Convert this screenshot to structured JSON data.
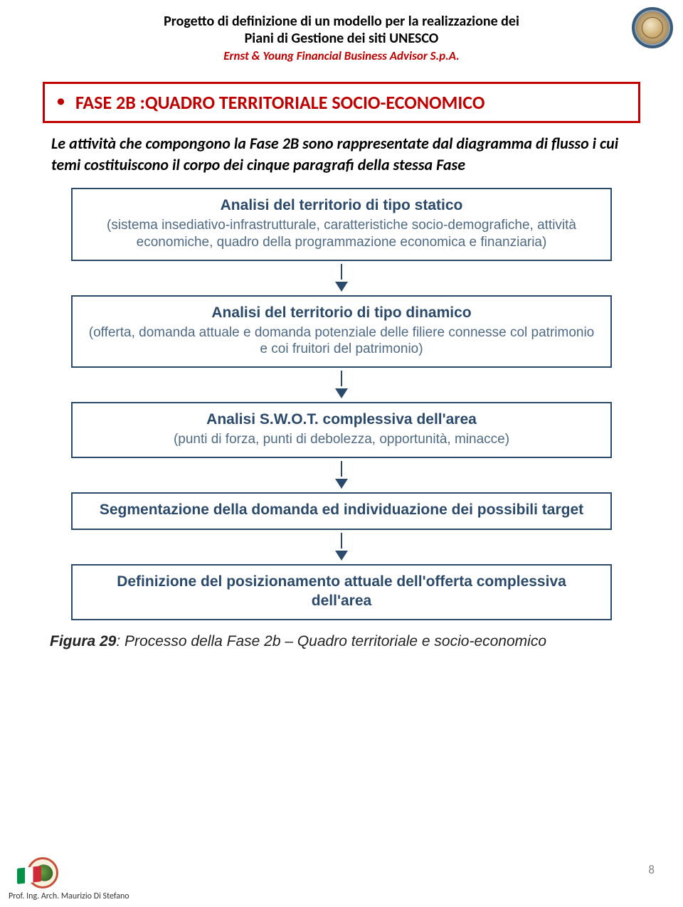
{
  "header": {
    "title_line1": "Progetto di definizione di un modello per la realizzazione dei",
    "title_line2": "Piani di Gestione dei siti UNESCO",
    "subtitle": "Ernst & Young Financial Business Advisor S.p.A.",
    "subtitle_color": "#c00000"
  },
  "phase": {
    "label": "FASE 2B :QUADRO TERRITORIALE SOCIO-ECONOMICO",
    "border_color": "#c00000",
    "text_color": "#c00000"
  },
  "intro": "Le attività che compongono la Fase 2B sono rappresentate dal diagramma di flusso i cui temi costituiscono il corpo dei cinque paragrafi  della stessa Fase",
  "flowchart": {
    "type": "flowchart",
    "node_border_color": "#2b4a6b",
    "title_color": "#2b4a6b",
    "body_color": "#4f6a84",
    "arrow_color": "#2b4a6b",
    "background_color": "#ffffff",
    "nodes": [
      {
        "title": "Analisi del territorio di tipo statico",
        "body": "(sistema insediativo-infrastrutturale, caratteristiche socio-demografiche, attività economiche, quadro della programmazione economica e finanziaria)"
      },
      {
        "title": "Analisi del territorio di tipo dinamico",
        "body": "(offerta, domanda attuale e domanda potenziale delle filiere connesse col patrimonio e coi fruitori del patrimonio)"
      },
      {
        "title": "Analisi S.W.O.T. complessiva dell'area",
        "body": "(punti di forza, punti di debolezza, opportunità, minacce)"
      },
      {
        "title": "Segmentazione della domanda ed individuazione dei possibili target",
        "body": ""
      },
      {
        "title": "Definizione del posizionamento attuale dell'offerta complessiva dell'area",
        "body": ""
      }
    ]
  },
  "caption": {
    "label": "Figura 29",
    "text": ": Processo della Fase 2b – Quadro territoriale e socio-economico"
  },
  "page_number": "8",
  "footer_author": "Prof. Ing. Arch. Maurizio Di Stefano"
}
